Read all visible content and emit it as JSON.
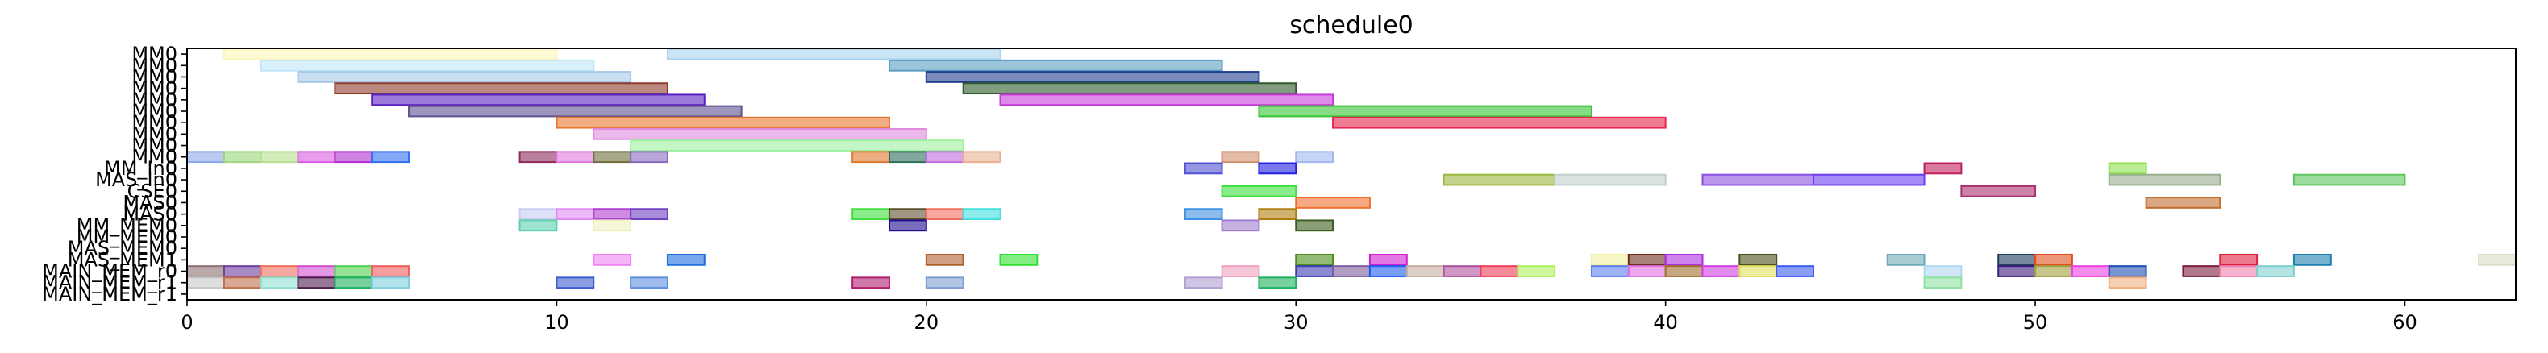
{
  "chart_data": {
    "type": "gantt",
    "title": "schedule0",
    "xlabel": "",
    "ylabel": "",
    "xlim": [
      0,
      63
    ],
    "x_ticks": [
      0,
      10,
      20,
      30,
      40,
      50,
      60
    ],
    "x_tick_labels": [
      "0",
      "10",
      "20",
      "30",
      "40",
      "50",
      "60"
    ],
    "grid": false,
    "rows": [
      "MM0",
      "MM0",
      "MM0",
      "MM0",
      "MM0",
      "MM0",
      "MM0",
      "MM0",
      "MM0",
      "MM0",
      "MM_In0",
      "MAS_In0",
      "CSE0",
      "MAS0",
      "MAS0",
      "MM_MEM0",
      "MM_MEM0",
      "MAS_MEM0",
      "MAS_MEM1",
      "MAIN_MEM_r0",
      "MAIN_MEM_r1",
      "MAIN_MEM_r1"
    ],
    "tasks": [
      {
        "row": 0,
        "start": 1,
        "end": 10,
        "color": "#fdf6b8"
      },
      {
        "row": 0,
        "start": 13,
        "end": 22,
        "color": "#a9d2f0"
      },
      {
        "row": 1,
        "start": 2,
        "end": 11,
        "color": "#bfe6f6"
      },
      {
        "row": 1,
        "start": 19,
        "end": 28,
        "color": "#5b9ec2"
      },
      {
        "row": 2,
        "start": 3,
        "end": 12,
        "color": "#a5c8e8"
      },
      {
        "row": 2,
        "start": 20,
        "end": 29,
        "color": "#1f3f8f"
      },
      {
        "row": 3,
        "start": 4,
        "end": 13,
        "color": "#8e3b2c"
      },
      {
        "row": 3,
        "start": 21,
        "end": 30,
        "color": "#2f5a2c"
      },
      {
        "row": 4,
        "start": 5,
        "end": 14,
        "color": "#5a22c4"
      },
      {
        "row": 4,
        "start": 22,
        "end": 31,
        "color": "#c63cd9"
      },
      {
        "row": 5,
        "start": 6,
        "end": 15,
        "color": "#5e4f8f"
      },
      {
        "row": 5,
        "start": 29,
        "end": 38,
        "color": "#33c433"
      },
      {
        "row": 6,
        "start": 10,
        "end": 19,
        "color": "#e8752e"
      },
      {
        "row": 6,
        "start": 31,
        "end": 40,
        "color": "#e8264e"
      },
      {
        "row": 7,
        "start": 11,
        "end": 20,
        "color": "#e08ae0"
      },
      {
        "row": 8,
        "start": 12,
        "end": 21,
        "color": "#9ff09f"
      },
      {
        "row": 9,
        "start": 0,
        "end": 1,
        "color": "#8ca5e6"
      },
      {
        "row": 9,
        "start": 1,
        "end": 2,
        "color": "#9ad67a"
      },
      {
        "row": 9,
        "start": 2,
        "end": 3,
        "color": "#b6e08c"
      },
      {
        "row": 9,
        "start": 3,
        "end": 4,
        "color": "#d85ee0"
      },
      {
        "row": 9,
        "start": 4,
        "end": 5,
        "color": "#b030d0"
      },
      {
        "row": 9,
        "start": 5,
        "end": 6,
        "color": "#3070f0"
      },
      {
        "row": 9,
        "start": 9,
        "end": 10,
        "color": "#8e2b5c"
      },
      {
        "row": 9,
        "start": 10,
        "end": 11,
        "color": "#e07ae0"
      },
      {
        "row": 9,
        "start": 11,
        "end": 12,
        "color": "#6e6e3e"
      },
      {
        "row": 9,
        "start": 12,
        "end": 13,
        "color": "#8a6ac0"
      },
      {
        "row": 9,
        "start": 18,
        "end": 19,
        "color": "#e07a30"
      },
      {
        "row": 9,
        "start": 19,
        "end": 20,
        "color": "#2e6e5e"
      },
      {
        "row": 9,
        "start": 20,
        "end": 21,
        "color": "#c06ee0"
      },
      {
        "row": 9,
        "start": 21,
        "end": 22,
        "color": "#e8b090"
      },
      {
        "row": 9,
        "start": 28,
        "end": 29,
        "color": "#d0906e"
      },
      {
        "row": 9,
        "start": 30,
        "end": 31,
        "color": "#a0b8ee"
      },
      {
        "row": 10,
        "start": 27,
        "end": 28,
        "color": "#5050d0"
      },
      {
        "row": 10,
        "start": 29,
        "end": 30,
        "color": "#2020e0"
      },
      {
        "row": 10,
        "start": 47,
        "end": 48,
        "color": "#c0205e"
      },
      {
        "row": 10,
        "start": 52,
        "end": 53,
        "color": "#8ee050"
      },
      {
        "row": 11,
        "start": 34,
        "end": 37,
        "color": "#9ab83e"
      },
      {
        "row": 11,
        "start": 37,
        "end": 40,
        "color": "#c2cfcf"
      },
      {
        "row": 11,
        "start": 41,
        "end": 44,
        "color": "#8a4ee0"
      },
      {
        "row": 11,
        "start": 44,
        "end": 47,
        "color": "#6a3ef0"
      },
      {
        "row": 11,
        "start": 52,
        "end": 55,
        "color": "#9aae8e"
      },
      {
        "row": 11,
        "start": 57,
        "end": 60,
        "color": "#5ec45e"
      },
      {
        "row": 12,
        "start": 28,
        "end": 30,
        "color": "#3ee03e"
      },
      {
        "row": 12,
        "start": 48,
        "end": 50,
        "color": "#a83070"
      },
      {
        "row": 13,
        "start": 30,
        "end": 32,
        "color": "#f07030"
      },
      {
        "row": 13,
        "start": 53,
        "end": 55,
        "color": "#c06e2e"
      },
      {
        "row": 14,
        "start": 9,
        "end": 10,
        "color": "#c8ccf4"
      },
      {
        "row": 14,
        "start": 10,
        "end": 11,
        "color": "#e08af0"
      },
      {
        "row": 14,
        "start": 11,
        "end": 12,
        "color": "#b040d0"
      },
      {
        "row": 14,
        "start": 12,
        "end": 13,
        "color": "#7040c0"
      },
      {
        "row": 14,
        "start": 18,
        "end": 19,
        "color": "#40e040"
      },
      {
        "row": 14,
        "start": 19,
        "end": 20,
        "color": "#5e4e2e"
      },
      {
        "row": 14,
        "start": 20,
        "end": 21,
        "color": "#f06e5e"
      },
      {
        "row": 14,
        "start": 21,
        "end": 22,
        "color": "#40e0e0"
      },
      {
        "row": 14,
        "start": 27,
        "end": 28,
        "color": "#3e90e0"
      },
      {
        "row": 14,
        "start": 29,
        "end": 30,
        "color": "#b07e10"
      },
      {
        "row": 15,
        "start": 9,
        "end": 10,
        "color": "#5ed0b0"
      },
      {
        "row": 15,
        "start": 11,
        "end": 12,
        "color": "#f0f0c0"
      },
      {
        "row": 15,
        "start": 19,
        "end": 20,
        "color": "#200e8e"
      },
      {
        "row": 15,
        "start": 28,
        "end": 29,
        "color": "#9e7ed0"
      },
      {
        "row": 15,
        "start": 30,
        "end": 31,
        "color": "#3e5e1e"
      },
      {
        "row": 18,
        "start": 11,
        "end": 12,
        "color": "#f080f0"
      },
      {
        "row": 18,
        "start": 13,
        "end": 14,
        "color": "#1e6ee0"
      },
      {
        "row": 18,
        "start": 20,
        "end": 21,
        "color": "#b05e2e"
      },
      {
        "row": 18,
        "start": 22,
        "end": 23,
        "color": "#30e030"
      },
      {
        "row": 18,
        "start": 30,
        "end": 31,
        "color": "#4e8e1e"
      },
      {
        "row": 18,
        "start": 32,
        "end": 33,
        "color": "#d020d0"
      },
      {
        "row": 18,
        "start": 38,
        "end": 39,
        "color": "#f0f0a0"
      },
      {
        "row": 18,
        "start": 39,
        "end": 40,
        "color": "#6e2e1e"
      },
      {
        "row": 18,
        "start": 40,
        "end": 41,
        "color": "#b030e0"
      },
      {
        "row": 18,
        "start": 42,
        "end": 43,
        "color": "#4e4e1e"
      },
      {
        "row": 18,
        "start": 46,
        "end": 47,
        "color": "#6eaab8"
      },
      {
        "row": 18,
        "start": 49,
        "end": 50,
        "color": "#1e3e5e"
      },
      {
        "row": 18,
        "start": 50,
        "end": 51,
        "color": "#e0501e"
      },
      {
        "row": 18,
        "start": 55,
        "end": 56,
        "color": "#e01e3e"
      },
      {
        "row": 18,
        "start": 57,
        "end": 58,
        "color": "#1e80b0"
      },
      {
        "row": 18,
        "start": 62,
        "end": 63,
        "color": "#dcdcc4"
      },
      {
        "row": 19,
        "start": 0,
        "end": 1,
        "color": "#8e6e6e"
      },
      {
        "row": 19,
        "start": 1,
        "end": 2,
        "color": "#6e3e9e"
      },
      {
        "row": 19,
        "start": 2,
        "end": 3,
        "color": "#f06e5e"
      },
      {
        "row": 19,
        "start": 3,
        "end": 4,
        "color": "#d050d0"
      },
      {
        "row": 19,
        "start": 4,
        "end": 5,
        "color": "#50d050"
      },
      {
        "row": 19,
        "start": 5,
        "end": 6,
        "color": "#f05e5e"
      },
      {
        "row": 19,
        "start": 28,
        "end": 29,
        "color": "#f0a0c0"
      },
      {
        "row": 19,
        "start": 30,
        "end": 31,
        "color": "#3e3eb0"
      },
      {
        "row": 19,
        "start": 31,
        "end": 32,
        "color": "#7e5e9e"
      },
      {
        "row": 19,
        "start": 32,
        "end": 33,
        "color": "#1e5ef0"
      },
      {
        "row": 19,
        "start": 33,
        "end": 34,
        "color": "#c8b0a0"
      },
      {
        "row": 19,
        "start": 34,
        "end": 35,
        "color": "#b050a0"
      },
      {
        "row": 19,
        "start": 35,
        "end": 36,
        "color": "#f03e5e"
      },
      {
        "row": 19,
        "start": 36,
        "end": 37,
        "color": "#b0f05e"
      },
      {
        "row": 19,
        "start": 38,
        "end": 39,
        "color": "#5e7ef0"
      },
      {
        "row": 19,
        "start": 39,
        "end": 40,
        "color": "#e070e0"
      },
      {
        "row": 19,
        "start": 40,
        "end": 41,
        "color": "#a0702e"
      },
      {
        "row": 19,
        "start": 41,
        "end": 42,
        "color": "#d03ee0"
      },
      {
        "row": 19,
        "start": 42,
        "end": 43,
        "color": "#e0e05e"
      },
      {
        "row": 19,
        "start": 43,
        "end": 44,
        "color": "#3e5ef0"
      },
      {
        "row": 19,
        "start": 47,
        "end": 48,
        "color": "#b0d8f0"
      },
      {
        "row": 19,
        "start": 49,
        "end": 50,
        "color": "#3e1e7e"
      },
      {
        "row": 19,
        "start": 50,
        "end": 51,
        "color": "#a0a03e"
      },
      {
        "row": 19,
        "start": 51,
        "end": 52,
        "color": "#f040e0"
      },
      {
        "row": 19,
        "start": 52,
        "end": 53,
        "color": "#1e4eb0"
      },
      {
        "row": 19,
        "start": 54,
        "end": 55,
        "color": "#7e1e3e"
      },
      {
        "row": 19,
        "start": 55,
        "end": 56,
        "color": "#f080b0"
      },
      {
        "row": 19,
        "start": 56,
        "end": 57,
        "color": "#80d0d0"
      },
      {
        "row": 20,
        "start": 0,
        "end": 1,
        "color": "#c8c8c8"
      },
      {
        "row": 20,
        "start": 1,
        "end": 2,
        "color": "#c0704e"
      },
      {
        "row": 20,
        "start": 2,
        "end": 3,
        "color": "#90e0d0"
      },
      {
        "row": 20,
        "start": 3,
        "end": 4,
        "color": "#4e1e4e"
      },
      {
        "row": 20,
        "start": 4,
        "end": 5,
        "color": "#1eb05e"
      },
      {
        "row": 20,
        "start": 5,
        "end": 6,
        "color": "#80d0e0"
      },
      {
        "row": 20,
        "start": 10,
        "end": 11,
        "color": "#3e5ed0"
      },
      {
        "row": 20,
        "start": 12,
        "end": 13,
        "color": "#5e8ee0"
      },
      {
        "row": 20,
        "start": 18,
        "end": 19,
        "color": "#b01e6e"
      },
      {
        "row": 20,
        "start": 20,
        "end": 21,
        "color": "#7e9ed0"
      },
      {
        "row": 20,
        "start": 27,
        "end": 28,
        "color": "#b0a0d0"
      },
      {
        "row": 20,
        "start": 29,
        "end": 30,
        "color": "#1eb05e"
      },
      {
        "row": 20,
        "start": 47,
        "end": 48,
        "color": "#90e0a0"
      },
      {
        "row": 20,
        "start": 52,
        "end": 53,
        "color": "#f0b07e"
      }
    ]
  }
}
